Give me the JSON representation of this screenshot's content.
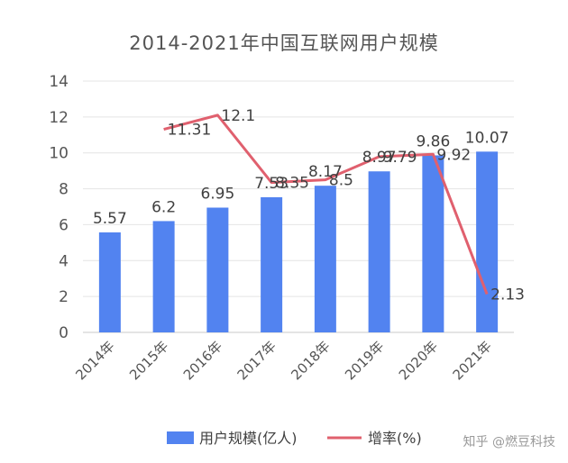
{
  "chart_data": {
    "type": "bar",
    "title": "2014-2021年中国互联网用户规模",
    "categories": [
      "2014年",
      "2015年",
      "2016年",
      "2017年",
      "2018年",
      "2019年",
      "2020年",
      "2021年"
    ],
    "ylim": [
      0,
      14
    ],
    "yticks": [
      0,
      2,
      4,
      6,
      8,
      10,
      12,
      14
    ],
    "grid": true,
    "legend_position": "bottom",
    "series": [
      {
        "name": "用户规模(亿人)",
        "kind": "bar",
        "color": "#5283F0",
        "values": [
          5.57,
          6.2,
          6.95,
          7.53,
          8.17,
          8.97,
          9.86,
          10.07
        ],
        "labels": [
          "5.57",
          "6.2",
          "6.95",
          "7.53",
          "8.17",
          "8.97",
          "9.86",
          "10.07"
        ]
      },
      {
        "name": "增率(%)",
        "kind": "line",
        "color": "#E0606E",
        "values": [
          null,
          11.31,
          12.1,
          8.35,
          8.5,
          9.79,
          9.92,
          2.13
        ],
        "labels": [
          null,
          "11.31",
          "12.1",
          "8.35",
          "8.5",
          "9.79",
          "9.92",
          "2.13"
        ]
      }
    ]
  },
  "watermark": "知乎 @燃豆科技"
}
